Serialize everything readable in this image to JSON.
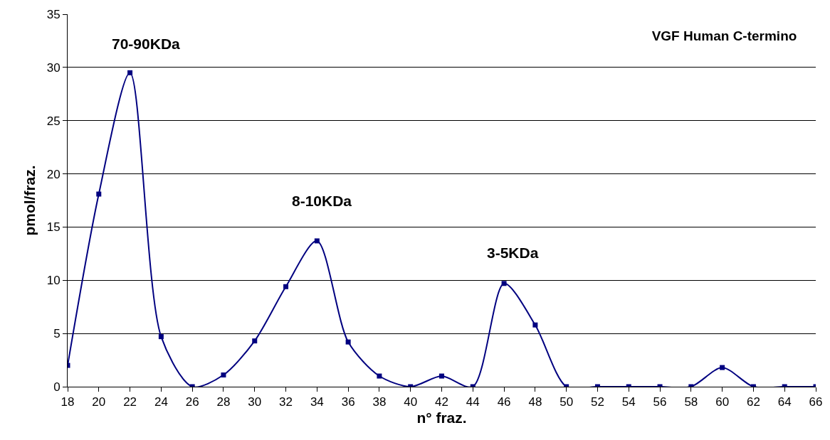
{
  "chart_data": {
    "type": "line",
    "title": "VGF Human C-termino",
    "xlabel": "n° fraz.",
    "ylabel": "pmol/fraz.",
    "x": [
      18,
      20,
      22,
      24,
      26,
      28,
      30,
      32,
      34,
      36,
      38,
      40,
      42,
      44,
      46,
      48,
      50,
      52,
      54,
      56,
      58,
      60,
      62,
      64,
      66
    ],
    "series": [
      {
        "color": "#000080",
        "values": [
          2,
          18.1,
          29.5,
          4.7,
          0,
          1.1,
          4.3,
          9.4,
          13.7,
          4.2,
          1,
          0,
          1,
          0,
          9.7,
          5.8,
          0,
          0,
          0,
          0,
          0,
          1.8,
          0,
          0,
          0
        ]
      }
    ],
    "xlim": [
      18,
      66
    ],
    "xticks": [
      18,
      20,
      22,
      24,
      26,
      28,
      30,
      32,
      34,
      36,
      38,
      40,
      42,
      44,
      46,
      48,
      50,
      52,
      54,
      56,
      58,
      60,
      62,
      64,
      66
    ],
    "ylim": [
      0,
      35
    ],
    "yticks": [
      0,
      5,
      10,
      15,
      20,
      25,
      30,
      35
    ],
    "annotations": [
      "70-90KDa",
      "8-10KDa",
      "3-5KDa"
    ],
    "grid": "y",
    "marker": "square",
    "line_style": "solid"
  }
}
